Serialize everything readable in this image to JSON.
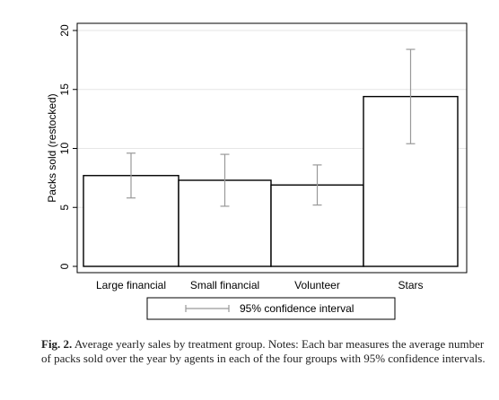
{
  "chart_data": {
    "type": "bar",
    "categories": [
      "Large financial",
      "Small financial",
      "Volunteer",
      "Stars"
    ],
    "values": [
      7.7,
      7.3,
      6.9,
      14.4
    ],
    "ci_low": [
      5.8,
      5.1,
      5.2,
      10.4
    ],
    "ci_high": [
      9.6,
      9.5,
      8.6,
      18.4
    ],
    "ylabel": "Packs sold (restocked)",
    "xlabel": "",
    "ylim": [
      0,
      20
    ],
    "yticks": [
      0,
      5,
      10,
      15,
      20
    ],
    "grid": true,
    "legend": {
      "placement": "bottom",
      "entries": [
        "95% confidence interval"
      ]
    },
    "colors": {
      "bar_fill": "#ffffff",
      "bar_stroke": "#000000",
      "error_bar": "#999999",
      "grid": "#e6e6e6"
    }
  },
  "caption": {
    "label": "Fig. 2.",
    "text": " Average yearly sales by treatment group. Notes: Each bar measures the average number of packs sold over the year by agents in each of the four groups with 95% confidence intervals."
  }
}
